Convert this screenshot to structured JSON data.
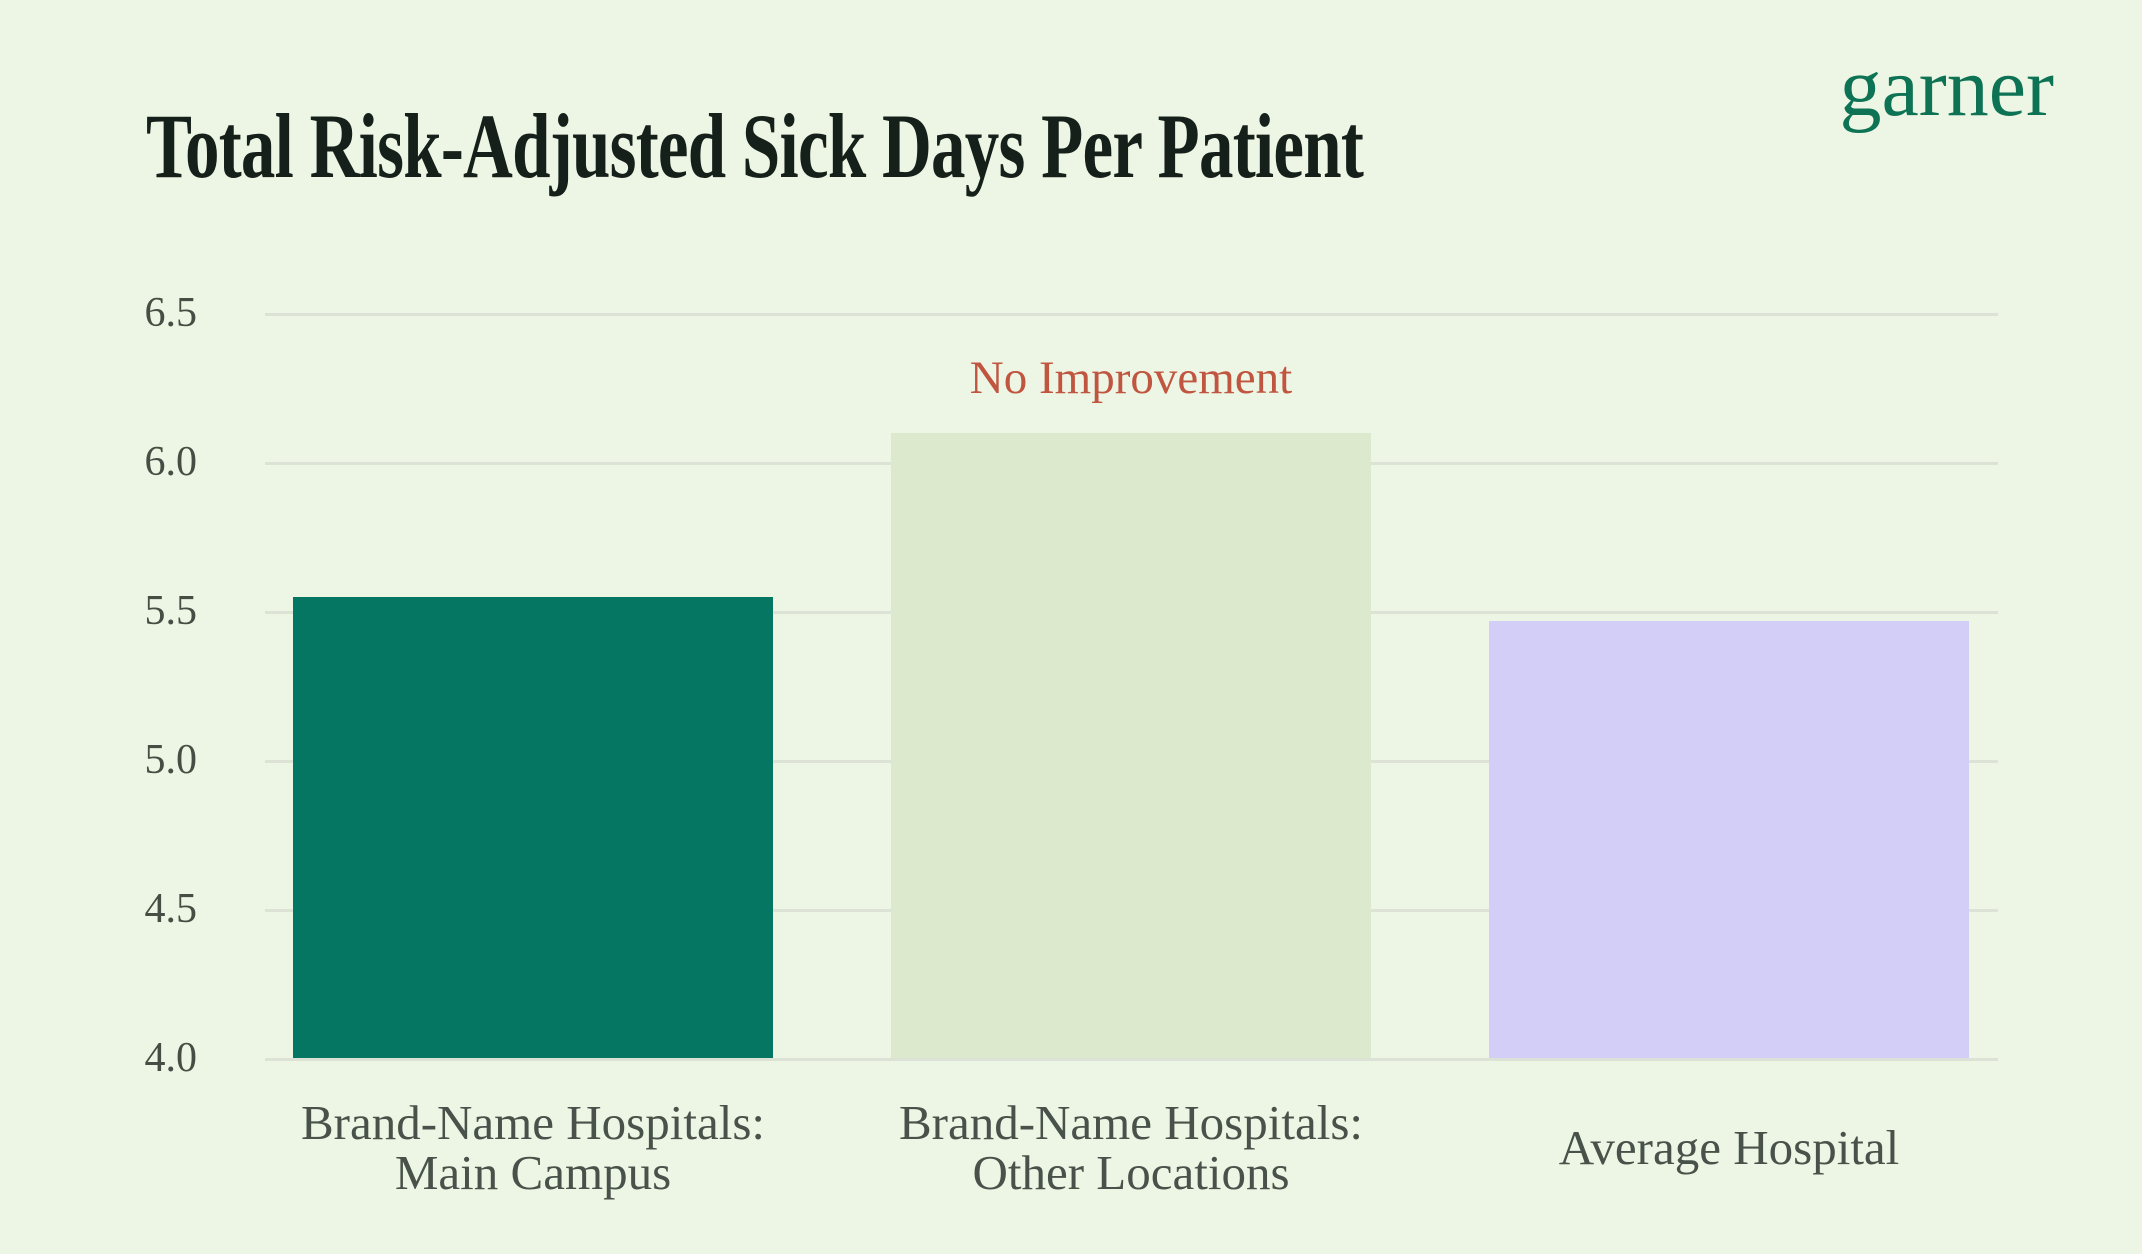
{
  "header": {
    "title": "Total Risk-Adjusted Sick Days Per Patient",
    "logo": "garner",
    "logo_color": "#0E7355",
    "title_color": "#16201A"
  },
  "chart_data": {
    "type": "bar",
    "title": "Total Risk-Adjusted Sick Days Per Patient",
    "categories": [
      "Brand-Name Hospitals:\nMain Campus",
      "Brand-Name Hospitals:\nOther Locations",
      "Average Hospital"
    ],
    "values": [
      5.55,
      6.1,
      5.47
    ],
    "bar_colors": [
      "#057661",
      "#DDE9CD",
      "#D2CEF7"
    ],
    "xlabel": "",
    "ylabel": "",
    "ylim": [
      4.0,
      6.5
    ],
    "yticks": [
      6.5,
      6.0,
      5.5,
      5.0,
      4.5,
      4.0
    ],
    "grid": true,
    "legend": false,
    "annotation": {
      "text": "No Improvement",
      "bar_index": 1,
      "color": "#C05540"
    }
  },
  "style": {
    "background": "#EDF6E4",
    "gridline_color": "#DCE3D6",
    "axis_text_color": "#454E44"
  }
}
